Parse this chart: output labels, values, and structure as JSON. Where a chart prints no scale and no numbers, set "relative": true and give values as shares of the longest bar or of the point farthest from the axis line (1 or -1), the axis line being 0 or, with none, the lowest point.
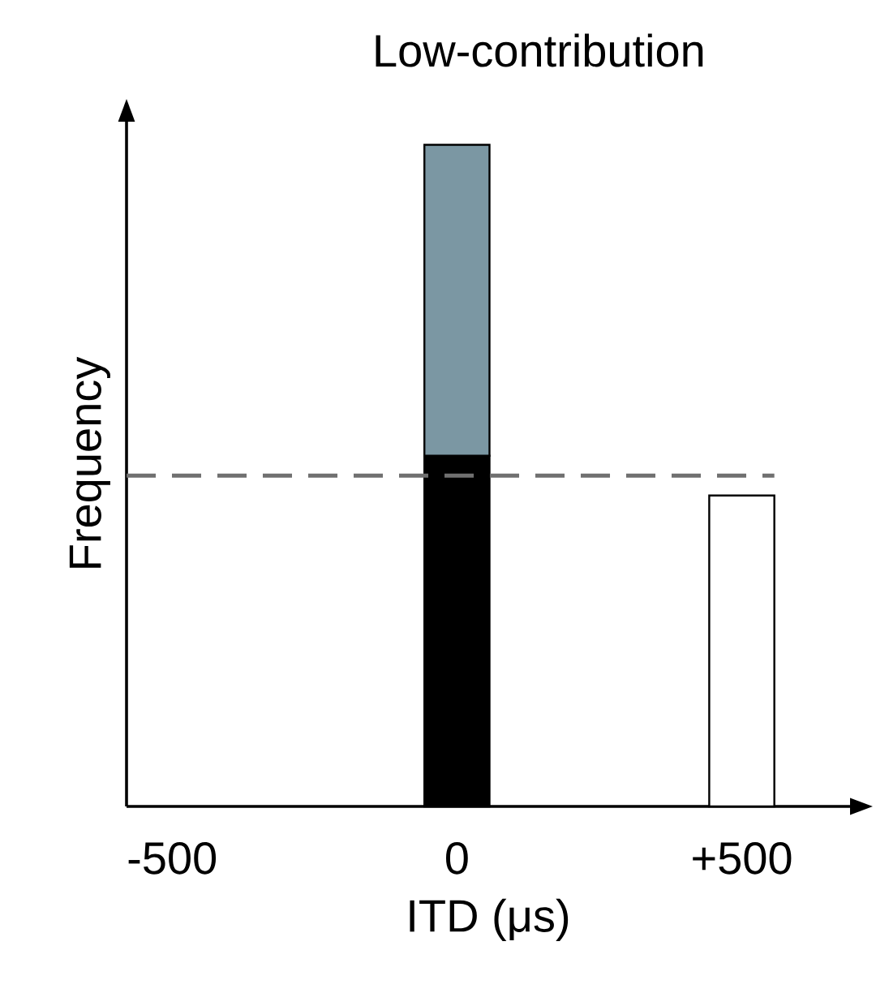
{
  "chart_data": {
    "type": "bar",
    "title": "Low-contribution",
    "xlabel": "ITD (μs)",
    "ylabel": "Frequency",
    "relative": true,
    "stacked": true,
    "x": [
      0,
      500
    ],
    "xlim": [
      -580,
      690
    ],
    "xticks": [
      {
        "value": -500,
        "label": "-500"
      },
      0,
      {
        "value": 500,
        "label": "+500"
      }
    ],
    "series": [
      {
        "color": "#000000",
        "values": [
          0.53,
          null
        ]
      },
      {
        "color": "#7b97a3",
        "values": [
          0.47,
          null
        ]
      },
      {
        "color": "#ffffff",
        "values": [
          null,
          0.47
        ]
      }
    ],
    "ref_lines": [
      {
        "axis": "y",
        "value": 0.5,
        "color": "#707070",
        "line_style": "dashed"
      }
    ]
  }
}
